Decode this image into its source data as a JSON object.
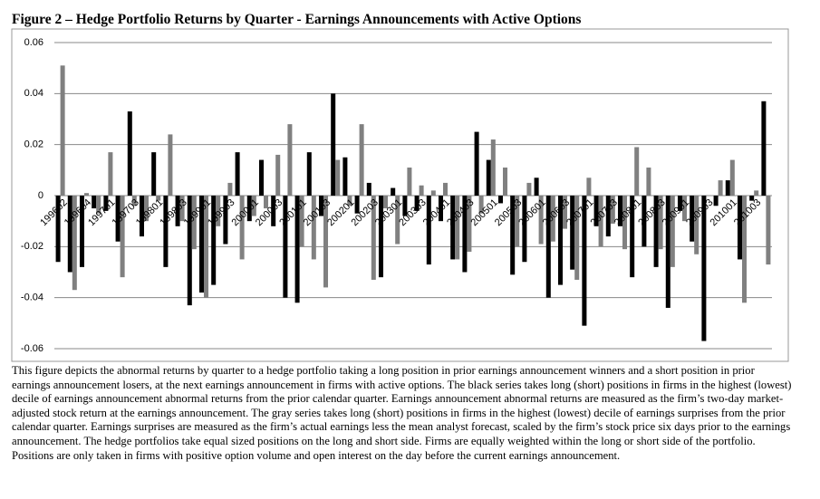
{
  "figure_title": "Figure 2 – Hedge Portfolio Returns by Quarter - Earnings Announcements with Active Options",
  "caption": "This figure depicts the abnormal returns by quarter to a hedge portfolio taking a long position in prior earnings announcement winners and a short position in prior earnings announcement losers, at the next earnings announcement in firms with active options. The black series takes long (short) positions in firms in the highest (lowest) decile of earnings announcement abnormal returns from the prior calendar quarter. Earnings announcement abnormal returns are measured as the firm’s two-day market-adjusted stock return at the earnings announcement. The gray series takes long (short) positions in firms in the highest (lowest) decile of earnings surprises from the prior calendar quarter. Earnings surprises are measured as the firm’s actual earnings less the mean analyst forecast, scaled by the firm’s stock price six days prior to the earnings announcement. The hedge portfolios take equal sized positions on the long and short side. Firms are equally weighted within the long or short side of the portfolio. Positions are only taken in firms with positive option volume and open interest on the day before the current earnings announcement.",
  "chart_data": {
    "type": "bar",
    "categories": [
      "199602",
      null,
      "199604",
      null,
      "199701",
      null,
      "199703",
      null,
      "199801",
      null,
      "199803",
      null,
      "199901",
      null,
      "199903",
      null,
      "200001",
      null,
      "200003",
      null,
      "200101",
      null,
      "200103",
      null,
      "200201",
      null,
      "200203",
      null,
      "200301",
      null,
      "200303",
      null,
      "200401",
      null,
      "200403",
      null,
      "200501",
      null,
      "200503",
      null,
      "200601",
      null,
      "200603",
      null,
      "200701",
      null,
      "200703",
      null,
      "200801",
      null,
      "200803",
      null,
      "200901",
      null,
      "200903",
      null,
      "201001",
      null,
      "201003",
      null
    ],
    "series": [
      {
        "color": "#000000",
        "values": [
          -0.026,
          -0.03,
          -0.028,
          -0.005,
          -0.006,
          -0.018,
          0.033,
          -0.016,
          0.017,
          -0.028,
          -0.012,
          -0.043,
          -0.038,
          -0.035,
          -0.019,
          0.017,
          -0.01,
          0.014,
          -0.012,
          -0.04,
          -0.042,
          0.017,
          -0.008,
          0.04,
          0.015,
          -0.007,
          0.005,
          -0.032,
          0.003,
          -0.008,
          -0.006,
          -0.027,
          -0.01,
          -0.025,
          -0.03,
          0.025,
          0.014,
          -0.003,
          -0.031,
          -0.026,
          0.007,
          -0.04,
          -0.035,
          -0.029,
          -0.051,
          -0.012,
          -0.016,
          -0.012,
          -0.032,
          -0.02,
          -0.028,
          -0.044,
          -0.006,
          -0.018,
          -0.057,
          -0.004,
          0.006,
          -0.025,
          -0.002,
          0.037
        ]
      },
      {
        "color": "#808080",
        "values": [
          0.051,
          -0.037,
          0.001,
          -0.007,
          0.017,
          -0.032,
          -0.004,
          -0.01,
          -0.002,
          0.024,
          -0.01,
          -0.021,
          -0.04,
          -0.012,
          0.005,
          -0.025,
          -0.008,
          -0.005,
          0.016,
          0.028,
          -0.02,
          -0.025,
          -0.036,
          0.014,
          -0.004,
          0.028,
          -0.033,
          -0.005,
          -0.019,
          0.011,
          0.004,
          0.002,
          0.005,
          -0.025,
          -0.022,
          -0.007,
          0.022,
          0.011,
          -0.02,
          0.005,
          -0.019,
          -0.018,
          -0.013,
          -0.033,
          0.007,
          -0.02,
          -0.011,
          -0.021,
          0.019,
          0.011,
          -0.021,
          -0.028,
          -0.01,
          -0.023,
          0.0,
          0.006,
          0.014,
          -0.042,
          0.002,
          -0.027
        ]
      }
    ],
    "ylim": [
      -0.06,
      0.06
    ],
    "yticks": [
      {
        "value": 0.06,
        "label": "0.06"
      },
      {
        "value": 0.04,
        "label": "0.04"
      },
      {
        "value": 0.02,
        "label": "0.02"
      },
      0,
      {
        "value": -0.02,
        "label": "-0.02"
      },
      {
        "value": -0.04,
        "label": "-0.04"
      },
      {
        "value": -0.06,
        "label": "-0.06"
      }
    ],
    "grid": true
  }
}
